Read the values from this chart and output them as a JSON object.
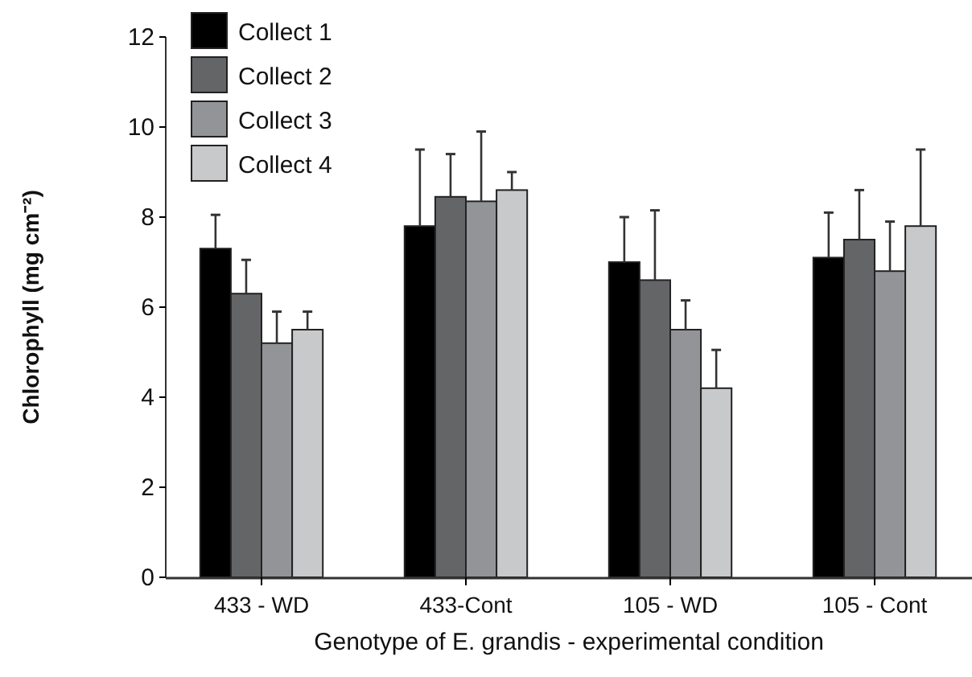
{
  "chart_data": {
    "type": "bar",
    "xlabel": "Genotype of E. grandis - experimental condition",
    "ylabel": "Chlorophyll (mg cm⁻²)",
    "categories": [
      "433 - WD",
      "433-Cont",
      "105 - WD",
      "105 - Cont"
    ],
    "series": [
      {
        "name": "Collect 1",
        "color": "#000000",
        "values": [
          7.3,
          7.8,
          7.0,
          7.1
        ],
        "errors": [
          [
            7.3,
            8.05
          ],
          [
            7.8,
            9.5
          ],
          [
            7.0,
            8.0
          ],
          [
            7.1,
            8.1
          ]
        ]
      },
      {
        "name": "Collect 2",
        "color": "#646567",
        "values": [
          6.3,
          8.45,
          6.6,
          7.5
        ],
        "errors": [
          [
            6.3,
            7.05
          ],
          [
            8.45,
            9.4
          ],
          [
            6.6,
            8.15
          ],
          [
            7.5,
            8.6
          ]
        ]
      },
      {
        "name": "Collect 3",
        "color": "#939498",
        "values": [
          5.2,
          8.35,
          5.5,
          6.8
        ],
        "errors": [
          [
            5.2,
            5.9
          ],
          [
            8.35,
            9.9
          ],
          [
            5.5,
            6.15
          ],
          [
            6.8,
            7.9
          ]
        ]
      },
      {
        "name": "Collect 4",
        "color": "#c8c9cb",
        "values": [
          5.5,
          8.6,
          4.2,
          7.8
        ],
        "errors": [
          [
            5.5,
            5.9
          ],
          [
            8.6,
            9.0
          ],
          [
            4.2,
            5.05
          ],
          [
            7.8,
            9.5
          ]
        ]
      }
    ],
    "ylim": [
      0,
      12
    ],
    "yticks": [
      0,
      2,
      4,
      6,
      8,
      10,
      12
    ],
    "legend": "top left"
  }
}
